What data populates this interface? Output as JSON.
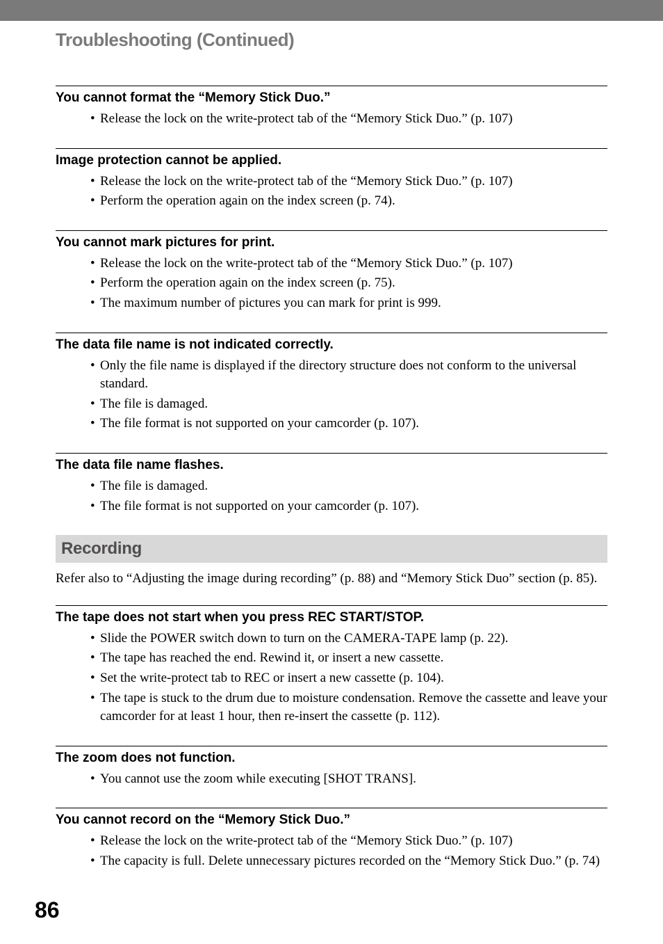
{
  "page_number": "86",
  "header_bar_color": "#7a7a7a",
  "chapter_title": "Troubleshooting (Continued)",
  "chapter_title_color": "#7a7a7a",
  "chapter_title_fontsize": 26,
  "section_heading_bg": "#d8d8d8",
  "section_heading_color": "#504e4e",
  "issues": [
    {
      "title": "You cannot format the “Memory Stick Duo.”",
      "bullets": [
        "Release the lock on the write-protect tab of the “Memory Stick Duo.” (p. 107)"
      ]
    },
    {
      "title": "Image protection cannot be applied.",
      "bullets": [
        "Release the lock on the write-protect tab of the “Memory Stick Duo.” (p. 107)",
        "Perform the operation again on the index screen (p. 74)."
      ]
    },
    {
      "title": "You cannot mark pictures for print.",
      "bullets": [
        "Release the lock on the write-protect tab of the “Memory Stick Duo.” (p. 107)",
        "Perform the operation again on the index screen (p. 75).",
        "The maximum number of pictures you can mark for print is 999."
      ]
    },
    {
      "title": "The data file name is not indicated correctly.",
      "bullets": [
        "Only the file name is displayed if the directory structure does not conform to the universal standard.",
        "The file is damaged.",
        "The file format is not supported on your camcorder (p. 107)."
      ]
    },
    {
      "title": "The data file name flashes.",
      "bullets": [
        "The file is damaged.",
        "The file format is not supported on your camcorder (p. 107)."
      ]
    }
  ],
  "section": {
    "heading": "Recording",
    "intro": "Refer also to “Adjusting the image during recording” (p. 88) and “Memory Stick Duo” section (p. 85).",
    "issues": [
      {
        "title": "The tape does not start when you press REC START/STOP.",
        "bullets": [
          "Slide the POWER switch down to turn on the CAMERA-TAPE lamp (p. 22).",
          "The tape has reached the end. Rewind it, or insert a new cassette.",
          "Set the write-protect tab to REC or insert a new cassette (p. 104).",
          "The tape is stuck to the drum due to moisture condensation. Remove the cassette and leave your camcorder for at least 1 hour, then re-insert the cassette (p. 112)."
        ]
      },
      {
        "title": "The zoom does not function.",
        "bullets": [
          "You cannot use the zoom while executing [SHOT TRANS]."
        ]
      },
      {
        "title": "You cannot record on the “Memory Stick Duo.”",
        "bullets": [
          "Release the lock on the write-protect tab of the “Memory Stick Duo.” (p. 107)",
          "The capacity is full. Delete unnecessary pictures recorded on the “Memory Stick Duo.” (p. 74)"
        ]
      }
    ]
  }
}
